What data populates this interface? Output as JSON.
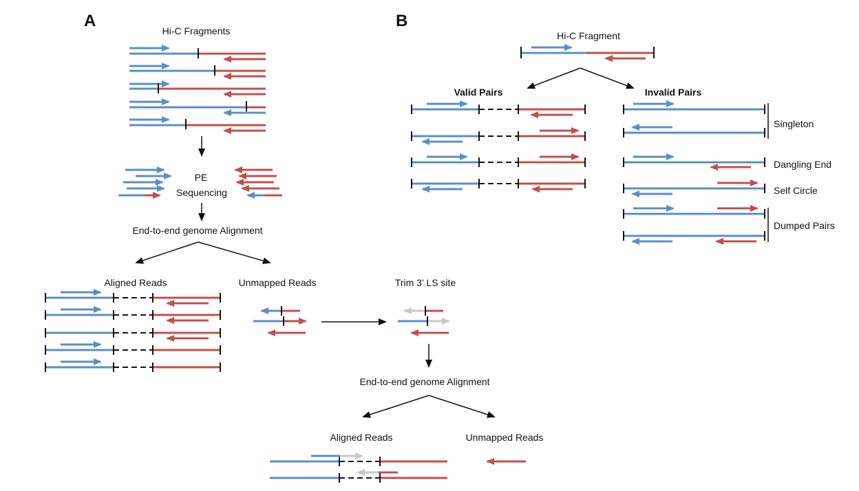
{
  "panel_a": {
    "letter": "A",
    "title": "Hi-C Fragments",
    "pe_line1": "PE",
    "pe_line2": "Sequencing",
    "alignment1": "End-to-end genome Alignment",
    "aligned_reads": "Aligned Reads",
    "unmapped_reads": "Unmapped Reads",
    "trim": "Trim 3’ LS site",
    "alignment2": "End-to-end genome Alignment",
    "aligned_reads2": "Aligned Reads",
    "unmapped_reads2": "Unmapped Reads"
  },
  "panel_b": {
    "letter": "B",
    "title": "Hi-C Fragment",
    "valid_pairs": "Valid Pairs",
    "invalid_pairs": "Invalid Pairs",
    "singleton": "Singleton",
    "dangling_end": "Dangling End",
    "self_circle": "Self Circle",
    "dumped_pairs": "Dumped Pairs"
  },
  "colors": {
    "blue": "#5b8ec9",
    "red": "#c0504d",
    "gray": "#c8c8c8",
    "black": "#111111"
  }
}
